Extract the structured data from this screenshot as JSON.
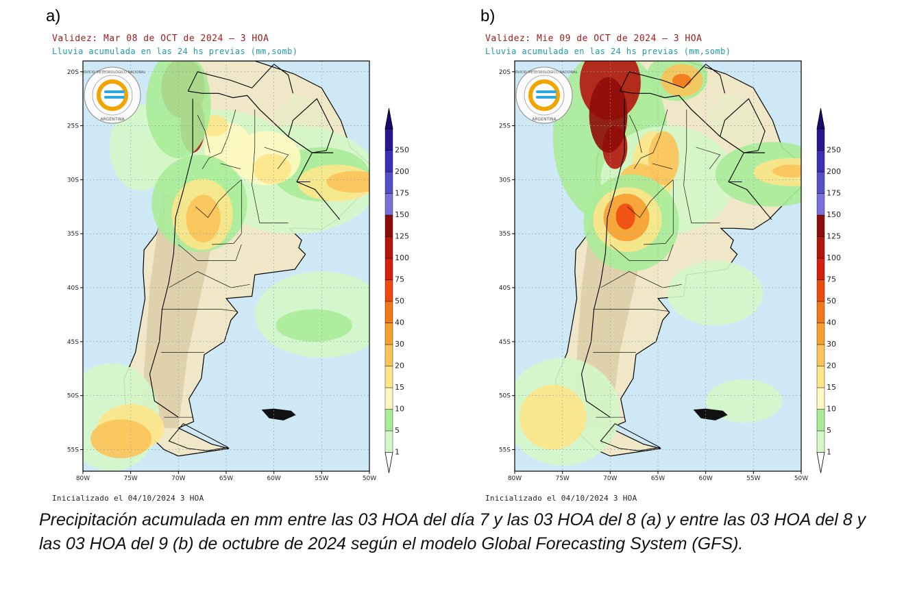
{
  "panels": [
    {
      "id": "a",
      "letter": "a)",
      "validez": "Validez: Mar 08 de OCT de 2024 – 3 HOA",
      "subtitle": "Lluvia acumulada en las 24 hs previas (mm,somb)",
      "initialized": "Inicializado el 04/10/2024 3 HOA"
    },
    {
      "id": "b",
      "letter": "b)",
      "validez": "Validez: Mie 09 de OCT de 2024 – 3 HOA",
      "subtitle": "Lluvia acumulada en las 24 hs previas (mm,somb)",
      "initialized": "Inicializado el 04/10/2024 3 HOA"
    }
  ],
  "axes": {
    "lat_labels": [
      "20S",
      "25S",
      "30S",
      "35S",
      "40S",
      "45S",
      "50S",
      "55S"
    ],
    "lon_labels": [
      "80W",
      "75W",
      "70W",
      "65W",
      "60W",
      "55W",
      "50W"
    ]
  },
  "legend": {
    "levels": [
      "1",
      "5",
      "10",
      "15",
      "20",
      "30",
      "40",
      "50",
      "75",
      "100",
      "125",
      "150",
      "175",
      "200",
      "250"
    ],
    "colors": [
      "#d4f7c8",
      "#a8ec98",
      "#fff8c0",
      "#fde58a",
      "#fbc35a",
      "#f7a030",
      "#f27819",
      "#ee4a10",
      "#d51f0f",
      "#b3160d",
      "#8e0c0a",
      "#7a70d8",
      "#5451c8",
      "#3a2fb5",
      "#2a1590"
    ]
  },
  "logo": {
    "ring_text_top": "SERVICIO METEOROLÓGICO NACIONAL",
    "ring_text_bottom": "ARGENTINA"
  },
  "caption": "Precipitación acumulada en mm entre las 03 HOA del día 7  y las 03 HOA del 8 (a) y entre las 03 HOA del 8  y las 03 HOA del 9 (b) de octubre de 2024 según el modelo Global Forecasting System (GFS).",
  "colors": {
    "ocean": "#cfe8f6",
    "frame": "#000000",
    "validez_text": "#9b1a1a",
    "subtitle_text": "#1f9aa8"
  }
}
